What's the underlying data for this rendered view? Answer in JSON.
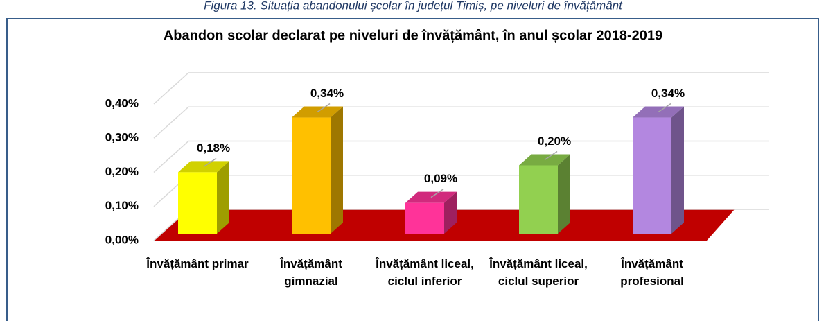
{
  "caption": "Figura 13. Situația abandonului școlar în județul Timiș, pe niveluri de învățământ",
  "chart_data": {
    "type": "bar3d",
    "title": "Abandon scolar declarat pe niveluri de învățământ, în anul școlar 2018-2019",
    "categories": [
      "Învățământ primar",
      "Învățământ gimnazial",
      "Învățământ liceal, ciclul inferior",
      "Învățământ liceal, ciclul superior",
      "Învățământ profesional"
    ],
    "values": [
      0.18,
      0.34,
      0.09,
      0.2,
      0.34
    ],
    "value_labels": [
      "0,18%",
      "0,34%",
      "0,09%",
      "0,20%",
      "0,34%"
    ],
    "colors": [
      "#ffff00",
      "#ffc000",
      "#ff3399",
      "#92d050",
      "#b387e0"
    ],
    "floor_color": "#c00000",
    "ylim": [
      0,
      0.4
    ],
    "yticks": [
      {
        "value": 0,
        "label": "0,00%"
      },
      {
        "value": 0.1,
        "label": "0,10%"
      },
      {
        "value": 0.2,
        "label": "0,20%"
      },
      {
        "value": 0.3,
        "label": "0,30%"
      },
      {
        "value": 0.4,
        "label": "0,40%"
      }
    ],
    "grid": true
  }
}
